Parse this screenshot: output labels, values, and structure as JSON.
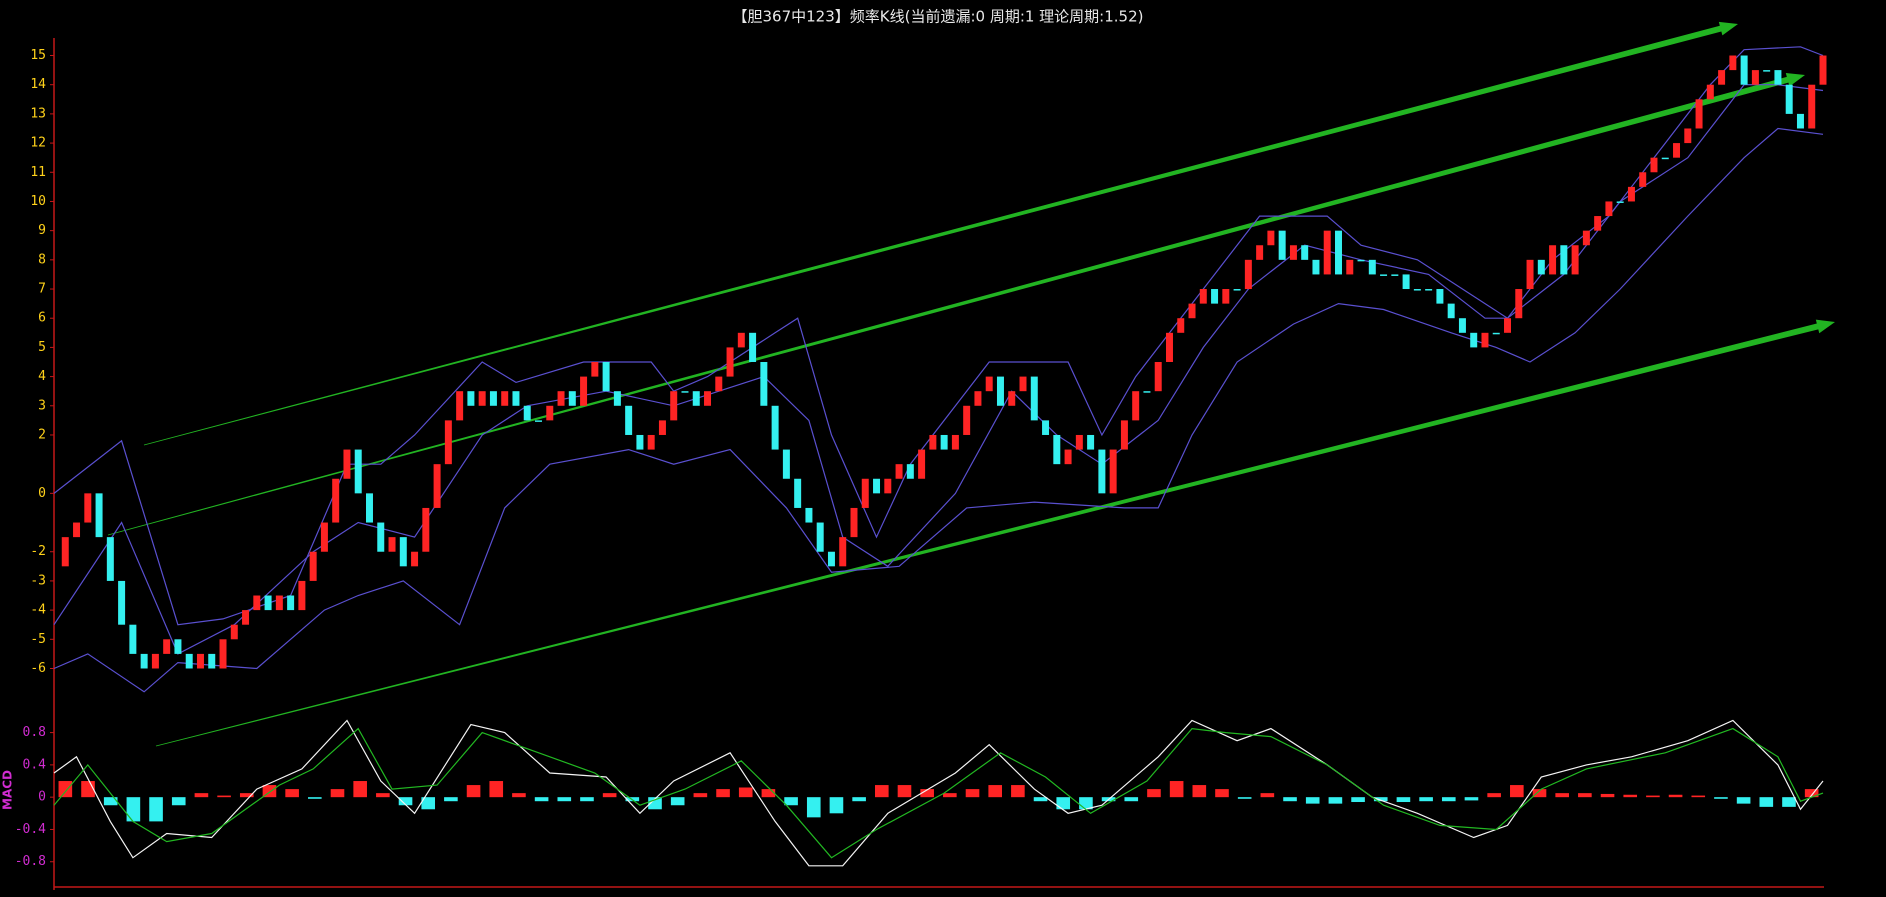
{
  "chart_data": [
    {
      "type": "candlestick",
      "title": "【胆367中123】频率K线(当前遗漏:0 周期:1 理论周期:1.52)",
      "up_color": "#ff2424",
      "down_color": "#34f0f0",
      "ylim": [
        -6.6,
        15.6
      ],
      "yticks": [
        15,
        14,
        13,
        12,
        11,
        10,
        9,
        8,
        7,
        6,
        5,
        4,
        3,
        2,
        0,
        -2,
        -3,
        -4,
        -5,
        -6
      ],
      "values": [
        -2.5,
        -1.5,
        -1,
        0,
        -1.5,
        -3,
        -4.5,
        -5.5,
        -6,
        -5.5,
        -5,
        -5.5,
        -6,
        -5.5,
        -6,
        -5,
        -4.5,
        -4,
        -3.5,
        -4,
        -3.5,
        -4,
        -3,
        -2,
        -1,
        0.5,
        1.5,
        0,
        -1,
        -2,
        -1.5,
        -2.5,
        -2,
        -0.5,
        1,
        2.5,
        3.5,
        3,
        3.5,
        3,
        3.5,
        3,
        2.5,
        2.5,
        3,
        3.5,
        3,
        4,
        4.5,
        3.5,
        3,
        2,
        1.5,
        2,
        2.5,
        3.5,
        3.5,
        3,
        3.5,
        4,
        5,
        5.5,
        4.5,
        3,
        1.5,
        0.5,
        -0.5,
        -1,
        -2,
        -2.5,
        -1.5,
        -0.5,
        0.5,
        0,
        0.5,
        1,
        0.5,
        1.5,
        2,
        1.5,
        2,
        3,
        3.5,
        4,
        3,
        3.5,
        4,
        2.5,
        2,
        1,
        1.5,
        2,
        1.5,
        0,
        1.5,
        2.5,
        3.5,
        3.5,
        4.5,
        5.5,
        6,
        6.5,
        7,
        6.5,
        7,
        7,
        8,
        8.5,
        9,
        8,
        8.5,
        8,
        7.5,
        9,
        7.5,
        8,
        8,
        7.5,
        7.5,
        7.5,
        7,
        7,
        7,
        6.5,
        6,
        5.5,
        5,
        5.5,
        5.5,
        6,
        7,
        8,
        7.5,
        8.5,
        7.5,
        8.5,
        9,
        9.5,
        10,
        10,
        10.5,
        11,
        11.5,
        11.5,
        12,
        12.5,
        13.5,
        14,
        14.5,
        15,
        14,
        14.5,
        14.5,
        14,
        13,
        12.5,
        14,
        15
      ],
      "lines": [
        {
          "color": "#5a50d0",
          "x": [
            0,
            6,
            11,
            15,
            21,
            26,
            29,
            32,
            38,
            41,
            47,
            53,
            55,
            58,
            64,
            66,
            69,
            73,
            76,
            83,
            90,
            93,
            96,
            102,
            107,
            113,
            116,
            121,
            123,
            127,
            129,
            133,
            138,
            143,
            147,
            150,
            155,
            157
          ],
          "values": [
            0,
            1.8,
            -4.5,
            -4.3,
            -3.5,
            1,
            1,
            2,
            4.5,
            3.8,
            4.5,
            4.5,
            3.5,
            4,
            5.5,
            6,
            2,
            -1.5,
            1,
            4.5,
            4.5,
            2,
            4,
            7,
            9.5,
            9.5,
            8.5,
            8,
            7.5,
            6.5,
            6,
            8,
            9.5,
            12,
            14,
            15.2,
            15.3,
            15
          ]
        },
        {
          "color": "#5a50d0",
          "x": [
            0,
            6,
            11,
            16,
            23,
            27,
            32,
            38,
            42,
            49,
            55,
            59,
            63,
            67,
            70,
            74,
            80,
            85,
            89,
            93,
            98,
            102,
            106,
            111,
            116,
            122,
            127,
            129,
            134,
            139,
            145,
            150,
            153,
            157
          ],
          "values": [
            -4.5,
            -1,
            -5.5,
            -4.5,
            -2,
            -1,
            -1.5,
            2,
            3,
            3.5,
            3,
            3.5,
            4,
            2.5,
            -1.5,
            -2.5,
            0,
            3.5,
            2,
            1,
            2.5,
            5,
            7,
            8.5,
            8,
            7.5,
            6,
            6,
            7.5,
            10,
            11.5,
            14,
            14,
            13.8
          ]
        },
        {
          "color": "#5a50d0",
          "x": [
            0,
            3,
            8,
            11,
            18,
            21,
            24,
            27,
            31,
            36,
            40,
            44,
            51,
            55,
            60,
            65,
            69,
            75,
            81,
            87,
            95,
            98,
            101,
            105,
            110,
            114,
            118,
            124,
            128,
            131,
            135,
            139,
            145,
            150,
            153,
            157
          ],
          "values": [
            -6,
            -5.5,
            -6.8,
            -5.8,
            -6,
            -5,
            -4,
            -3.5,
            -3,
            -4.5,
            -0.5,
            1,
            1.5,
            1,
            1.5,
            -0.5,
            -2.7,
            -2.5,
            -0.5,
            -0.3,
            -0.5,
            -0.5,
            2,
            4.5,
            5.8,
            6.5,
            6.3,
            5.5,
            5,
            4.5,
            5.5,
            7,
            9.5,
            11.5,
            12.5,
            12.3
          ]
        }
      ]
    },
    {
      "type": "macd",
      "label": "MACD",
      "ylim": [
        -1.15,
        1.08
      ],
      "yticks": [
        0.8,
        0.4,
        0,
        -0.4,
        -0.8
      ],
      "up_color": "#ff2424",
      "down_color": "#34f0f0",
      "histogram": [
        0.2,
        0.2,
        -0.1,
        -0.3,
        -0.3,
        -0.1,
        0.05,
        0.02,
        0.05,
        0.15,
        0.1,
        -0.02,
        0.1,
        0.2,
        0.05,
        -0.1,
        -0.15,
        -0.05,
        0.15,
        0.2,
        0.05,
        -0.05,
        -0.05,
        -0.05,
        0.05,
        -0.05,
        -0.15,
        -0.1,
        0.05,
        0.1,
        0.12,
        0.1,
        -0.1,
        -0.25,
        -0.2,
        -0.05,
        0.15,
        0.15,
        0.1,
        0.05,
        0.1,
        0.15,
        0.15,
        -0.05,
        -0.15,
        -0.15,
        -0.05,
        -0.05,
        0.1,
        0.2,
        0.15,
        0.1,
        -0.02,
        0.05,
        -0.05,
        -0.08,
        -0.08,
        -0.06,
        -0.05,
        -0.06,
        -0.05,
        -0.05,
        -0.04,
        0.05,
        0.15,
        0.1,
        0.05,
        0.05,
        0.04,
        0.03,
        0.02,
        0.03,
        0.02,
        -0.02,
        -0.08,
        -0.12,
        -0.12,
        0.1
      ],
      "lines": [
        {
          "color": "#f4f4f4",
          "x": [
            0,
            2,
            5,
            7,
            10,
            14,
            18,
            22,
            26,
            29,
            32,
            37,
            40,
            44,
            49,
            52,
            55,
            60,
            64,
            67,
            70,
            74,
            80,
            83,
            87,
            90,
            93,
            98,
            101,
            105,
            108,
            113,
            117,
            121,
            126,
            129,
            132,
            136,
            140,
            145,
            149,
            153,
            155,
            157
          ],
          "values": [
            0.3,
            0.5,
            -0.3,
            -0.75,
            -0.45,
            -0.5,
            0.1,
            0.35,
            0.95,
            0.2,
            -0.2,
            0.9,
            0.8,
            0.3,
            0.25,
            -0.2,
            0.2,
            0.55,
            -0.3,
            -0.85,
            -0.85,
            -0.2,
            0.3,
            0.65,
            0.1,
            -0.2,
            -0.1,
            0.5,
            0.95,
            0.7,
            0.85,
            0.4,
            0,
            -0.2,
            -0.5,
            -0.35,
            0.25,
            0.4,
            0.5,
            0.7,
            0.95,
            0.4,
            -0.15,
            0.2
          ]
        },
        {
          "color": "#22b822",
          "x": [
            0,
            3,
            7,
            10,
            14,
            20,
            23,
            27,
            30,
            34,
            38,
            42,
            48,
            52,
            56,
            61,
            65,
            69,
            73,
            79,
            84,
            88,
            92,
            97,
            101,
            104,
            108,
            113,
            118,
            123,
            128,
            132,
            136,
            143,
            149,
            153,
            155,
            157
          ],
          "values": [
            -0.1,
            0.4,
            -0.3,
            -0.55,
            -0.45,
            0.15,
            0.35,
            0.85,
            0.1,
            0.15,
            0.8,
            0.6,
            0.3,
            -0.1,
            0.1,
            0.45,
            -0.1,
            -0.75,
            -0.4,
            0.05,
            0.55,
            0.25,
            -0.2,
            0.2,
            0.85,
            0.8,
            0.75,
            0.4,
            -0.1,
            -0.35,
            -0.4,
            0.1,
            0.35,
            0.55,
            0.85,
            0.5,
            -0.05,
            0.05
          ]
        }
      ]
    }
  ]
}
